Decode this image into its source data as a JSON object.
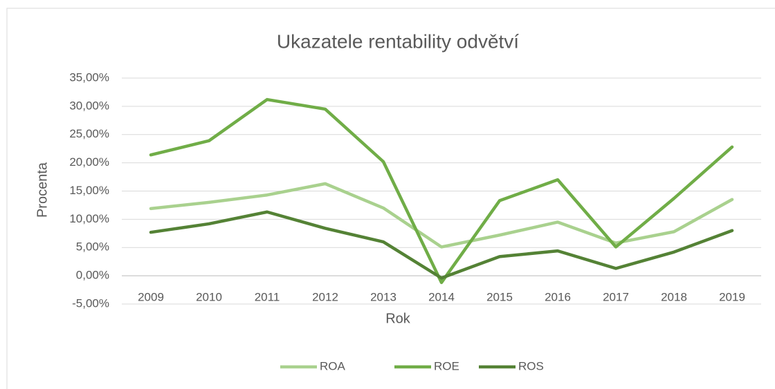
{
  "chart_data": {
    "type": "line",
    "title": "Ukazatele rentability odvětví",
    "x_label": "Rok",
    "y_label": "Procenta",
    "categories": [
      "2009",
      "2010",
      "2011",
      "2012",
      "2013",
      "2014",
      "2015",
      "2016",
      "2017",
      "2018",
      "2019"
    ],
    "series": [
      {
        "name": "ROA",
        "color": "#a9d18e",
        "values": [
          11.9,
          13.0,
          14.3,
          16.3,
          12.0,
          5.1,
          7.2,
          9.5,
          5.8,
          7.8,
          13.5
        ]
      },
      {
        "name": "ROE",
        "color": "#70ad47",
        "values": [
          21.4,
          23.9,
          31.2,
          29.5,
          20.2,
          -1.2,
          13.3,
          17.0,
          5.1,
          13.7,
          22.8
        ]
      },
      {
        "name": "ROS",
        "color": "#548235",
        "values": [
          7.7,
          9.2,
          11.3,
          8.4,
          6.0,
          -0.4,
          3.4,
          4.4,
          1.3,
          4.2,
          8.0
        ]
      }
    ],
    "ylim": [
      -5,
      35
    ],
    "yticks": [
      {
        "value": -5,
        "label": "-5,00%"
      },
      {
        "value": 0,
        "label": "0,00%"
      },
      {
        "value": 5,
        "label": "5,00%"
      },
      {
        "value": 10,
        "label": "10,00%"
      },
      {
        "value": 15,
        "label": "15,00%"
      },
      {
        "value": 20,
        "label": "20,00%"
      },
      {
        "value": 25,
        "label": "25,00%"
      },
      {
        "value": 30,
        "label": "30,00%"
      },
      {
        "value": 35,
        "label": "35,00%"
      }
    ],
    "grid": true,
    "legend": "bottom"
  }
}
